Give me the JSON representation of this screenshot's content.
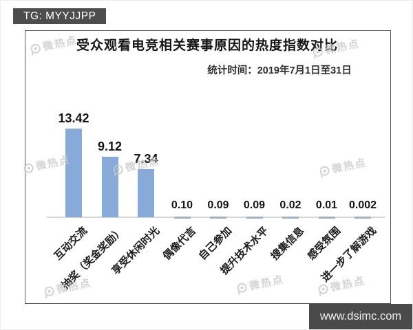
{
  "badges": {
    "tg": "TG: MYYJJPP",
    "site": "www.dsimc.com"
  },
  "watermark_text": "微热点",
  "colors": {
    "badge_bg": "#4d4d4d",
    "bar": "#87AAD9",
    "small_bar": "#9EB2C9",
    "watermark": "#c9c9c9"
  },
  "chart_data": {
    "type": "bar",
    "title": "受众观看电竞相关赛事原因的热度指数对比",
    "subtitle": "统计时间：2019年7月1日至31日",
    "categories": [
      "互动交流",
      "抽奖（奖金奖励）",
      "享受休闲时光",
      "偶像代言",
      "自己参加",
      "提升技术水平",
      "搜集信息",
      "感受氛围",
      "进一步了解游戏"
    ],
    "values": [
      13.42,
      9.12,
      7.34,
      0.1,
      0.09,
      0.09,
      0.02,
      0.01,
      0.002
    ],
    "value_labels": [
      "13.42",
      "9.12",
      "7.34",
      "0.10",
      "0.09",
      "0.09",
      "0.02",
      "0.01",
      "0.002"
    ],
    "xlabel": "",
    "ylabel": "",
    "ylim": [
      0,
      14.5
    ],
    "grid": false,
    "legend": false,
    "bar_color": "#87AAD9"
  }
}
